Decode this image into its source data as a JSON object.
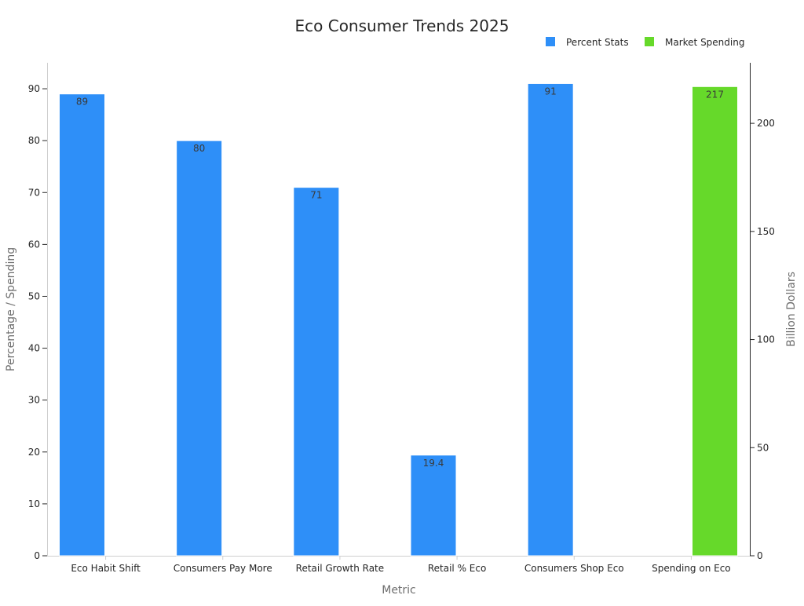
{
  "chart_data": {
    "type": "bar",
    "title": "Eco Consumer Trends 2025",
    "xlabel": "Metric",
    "ylabel": "Percentage / Spending",
    "y2label": "Billion Dollars",
    "categories": [
      "Eco Habit Shift",
      "Consumers Pay More",
      "Retail Growth Rate",
      "Retail % Eco",
      "Consumers Shop Eco",
      "Spending on Eco"
    ],
    "series": [
      {
        "name": "Percent Stats",
        "axis": "left",
        "color": "#2e8ff8",
        "values": [
          89,
          80,
          71,
          19.4,
          91,
          null
        ],
        "labels": [
          "89",
          "80",
          "71",
          "19.4",
          "91",
          ""
        ]
      },
      {
        "name": "Market Spending",
        "axis": "right",
        "color": "#66d92a",
        "values": [
          null,
          null,
          null,
          null,
          null,
          217
        ],
        "labels": [
          "",
          "",
          "",
          "",
          "",
          "217"
        ]
      }
    ],
    "ylim": [
      0,
      95
    ],
    "yticks": [
      0,
      10,
      20,
      30,
      40,
      50,
      60,
      70,
      80,
      90
    ],
    "y2lim": [
      0,
      228
    ],
    "y2ticks": [
      0,
      50,
      100,
      150,
      200
    ],
    "legend_position": "top-right",
    "grid": false
  }
}
